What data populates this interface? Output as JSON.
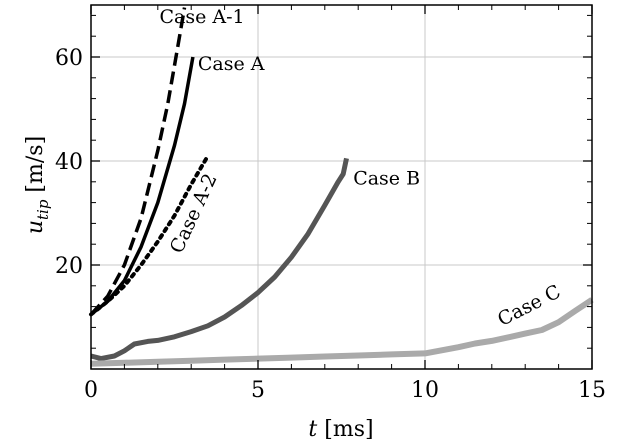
{
  "chart_data": {
    "type": "line",
    "xlabel": "t [ms]",
    "ylabel": "u_tip [m/s]",
    "xlim": [
      0,
      15
    ],
    "ylim": [
      0,
      70
    ],
    "x_ticks": [
      0,
      5,
      10,
      15
    ],
    "y_ticks": [
      20,
      40,
      60
    ],
    "grid": true,
    "legend": "none",
    "series": [
      {
        "name": "Case A-1",
        "color": "#000000",
        "style": "dashed",
        "x": [
          0,
          0.5,
          1.0,
          1.5,
          2.0,
          2.3,
          2.6,
          2.8
        ],
        "y": [
          10.5,
          14.0,
          20.0,
          29.0,
          42.0,
          51.0,
          62.0,
          69.5
        ]
      },
      {
        "name": "Case A",
        "color": "#000000",
        "style": "solid",
        "x": [
          0,
          0.5,
          1.0,
          1.5,
          2.0,
          2.5,
          2.8,
          3.05
        ],
        "y": [
          10.5,
          13.0,
          17.0,
          23.5,
          32.0,
          43.0,
          51.0,
          60.0
        ]
      },
      {
        "name": "Case A-2",
        "color": "#000000",
        "style": "dotted",
        "x": [
          0,
          0.5,
          1.0,
          1.5,
          2.0,
          2.5,
          3.0,
          3.5
        ],
        "y": [
          10.5,
          13.0,
          16.0,
          20.0,
          24.5,
          29.5,
          35.5,
          41.0
        ]
      },
      {
        "name": "Case B",
        "color": "#555555",
        "style": "solid",
        "x": [
          0,
          0.3,
          0.7,
          1.0,
          1.3,
          1.7,
          2.0,
          2.5,
          3.0,
          3.5,
          4.0,
          4.5,
          5.0,
          5.5,
          6.0,
          6.5,
          7.0,
          7.4,
          7.55,
          7.65
        ],
        "y": [
          2.5,
          2.0,
          2.5,
          3.5,
          4.8,
          5.3,
          5.5,
          6.2,
          7.2,
          8.3,
          10.0,
          12.2,
          14.7,
          17.7,
          21.5,
          26.0,
          31.5,
          36.0,
          37.5,
          40.5
        ]
      },
      {
        "name": "Case C",
        "color": "#aaaaaa",
        "style": "solid",
        "x": [
          0,
          1,
          2,
          3,
          4,
          5,
          6,
          7,
          8,
          9,
          10,
          10.5,
          11,
          11.5,
          12,
          12.5,
          13,
          13.5,
          14,
          14.5,
          15
        ],
        "y": [
          1.0,
          1.2,
          1.4,
          1.6,
          1.8,
          2.0,
          2.2,
          2.4,
          2.6,
          2.8,
          3.0,
          3.6,
          4.2,
          4.9,
          5.4,
          6.1,
          6.8,
          7.5,
          9.0,
          11.2,
          13.3
        ]
      }
    ],
    "annotations": [
      {
        "text": "Case A-1",
        "x": 2.05,
        "y": 66.5,
        "angle": 0
      },
      {
        "text": "Case A",
        "x": 3.2,
        "y": 57.5,
        "angle": 0
      },
      {
        "text": "Case A-2",
        "x": 2.7,
        "y": 22.0,
        "angle": -65
      },
      {
        "text": "Case B",
        "x": 7.85,
        "y": 35.5,
        "angle": 0
      },
      {
        "text": "Case C",
        "x": 12.3,
        "y": 8.2,
        "angle": -27
      }
    ]
  }
}
